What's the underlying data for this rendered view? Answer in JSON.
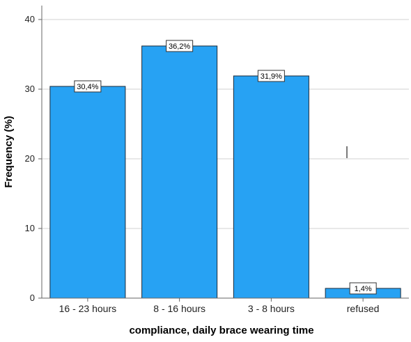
{
  "chart_data": {
    "type": "bar",
    "categories": [
      "16 - 23 hours",
      "8 - 16 hours",
      "3 - 8 hours",
      "refused"
    ],
    "values": [
      30.4,
      36.2,
      31.9,
      1.4
    ],
    "data_labels": [
      "30,4%",
      "36,2%",
      "31,9%",
      "1,4%"
    ],
    "xlabel": "compliance, daily brace wearing time",
    "ylabel": "Frequency (%)",
    "ylim": [
      0,
      42
    ],
    "yticks": [
      0,
      10,
      20,
      30,
      40
    ],
    "ytick_labels": [
      "0",
      "10",
      "20",
      "30",
      "40"
    ],
    "grid": "horizontal",
    "legend": "none",
    "colors": {
      "bar_fill": "#27a2f3",
      "bar_stroke": "#1b2a3a",
      "grid": "#d2d2d2",
      "axis": "#666666"
    }
  }
}
